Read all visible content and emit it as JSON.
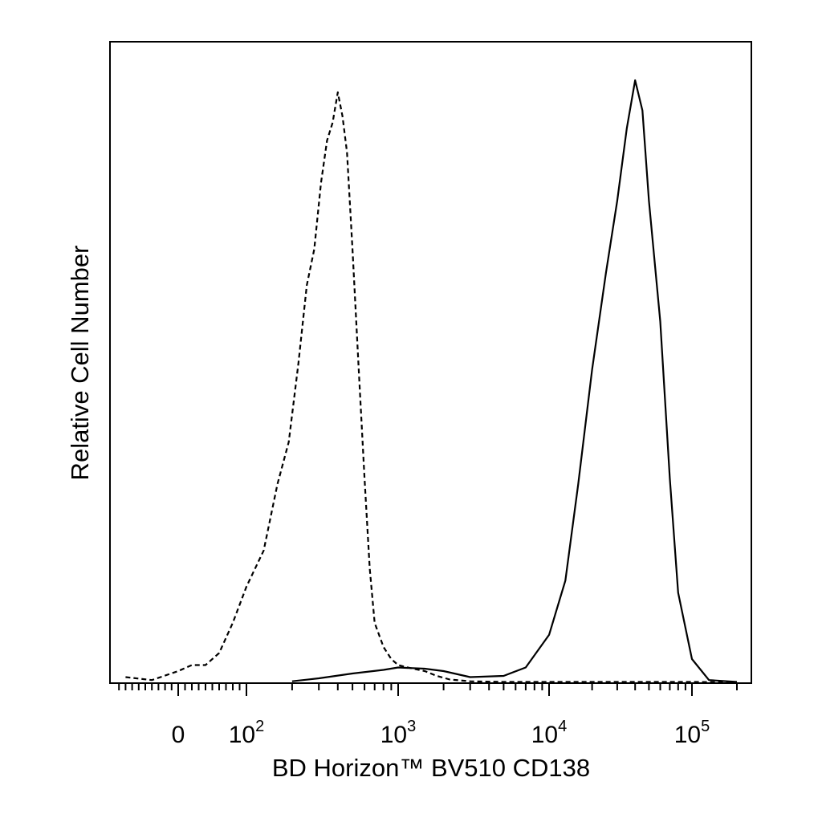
{
  "chart_data": {
    "type": "line",
    "title": "",
    "xlabel": "BD Horizon™ BV510 CD138",
    "ylabel": "Relative Cell Number",
    "x_scale": "biexponential",
    "xlim": [
      -100,
      250000
    ],
    "ylim": [
      0,
      100
    ],
    "grid": false,
    "legend": "none",
    "x_ticks": [
      {
        "value": 0,
        "base": "0",
        "exp": ""
      },
      {
        "value": 100,
        "base": "10",
        "exp": "2"
      },
      {
        "value": 1000,
        "base": "10",
        "exp": "3"
      },
      {
        "value": 10000,
        "base": "10",
        "exp": "4"
      },
      {
        "value": 100000,
        "base": "10",
        "exp": "5"
      }
    ],
    "series": [
      {
        "style": "dashed",
        "x": [
          -80,
          -40,
          0,
          20,
          40,
          60,
          80,
          100,
          130,
          160,
          190,
          220,
          250,
          280,
          310,
          340,
          370,
          400,
          430,
          460,
          500,
          550,
          600,
          650,
          700,
          800,
          900,
          1000,
          1200,
          1500,
          1800,
          2200,
          3000,
          5000,
          10000,
          30000,
          100000,
          200000
        ],
        "y": [
          1,
          0.5,
          2,
          3,
          3,
          5,
          10,
          16,
          22,
          33,
          40,
          53,
          66,
          72,
          83,
          90,
          93,
          98,
          94,
          88,
          72,
          52,
          34,
          19,
          10,
          6,
          4,
          3,
          2.5,
          2,
          1.2,
          0.6,
          0.3,
          0.2,
          0.2,
          0.2,
          0.2,
          0.1
        ]
      },
      {
        "style": "solid",
        "x": [
          200,
          300,
          500,
          800,
          1000,
          1500,
          2000,
          3000,
          5000,
          7000,
          10000,
          13000,
          16000,
          20000,
          25000,
          30000,
          35000,
          40000,
          45000,
          50000,
          60000,
          70000,
          80000,
          100000,
          130000,
          200000
        ],
        "y": [
          0.3,
          0.8,
          1.6,
          2.2,
          2.6,
          2.4,
          2,
          1,
          1.2,
          2.6,
          8,
          17,
          33,
          52,
          68,
          80,
          92,
          100,
          95,
          80,
          60,
          34,
          15,
          4,
          0.5,
          0.2
        ]
      }
    ]
  }
}
